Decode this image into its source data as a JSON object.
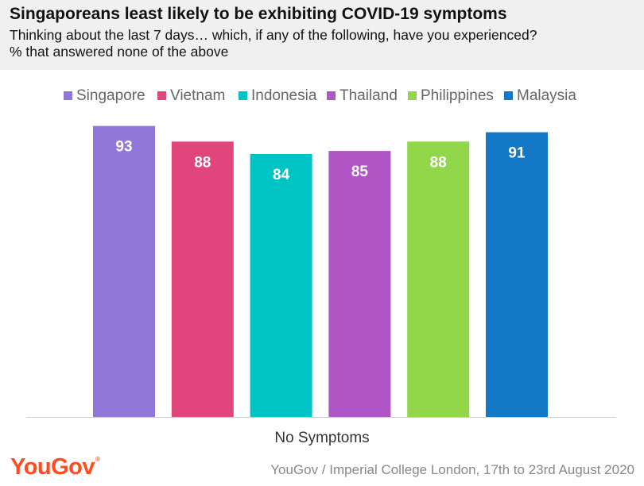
{
  "title": "Singaporeans least likely to be exhibiting COVID-19 symptoms",
  "subtitle_line1": "Thinking about the last 7 days… which, if any of the following, have you experienced?",
  "subtitle_line2": "% that answered none of the above",
  "source": "YouGov / Imperial College London, 17th to 23rd August 2020",
  "logo_text": "YouGov",
  "chart_data": {
    "type": "bar",
    "categories": [
      "No Symptoms"
    ],
    "xlabel": "No Symptoms",
    "ylim": [
      0,
      100
    ],
    "grid": false,
    "legend_position": "top",
    "series": [
      {
        "name": "Singapore",
        "values": [
          93
        ],
        "color": "#9178d8"
      },
      {
        "name": "Vietnam",
        "values": [
          88
        ],
        "color": "#e0457b"
      },
      {
        "name": "Indonesia",
        "values": [
          84
        ],
        "color": "#00c4c4"
      },
      {
        "name": "Thailand",
        "values": [
          85
        ],
        "color": "#b055c6"
      },
      {
        "name": "Philippines",
        "values": [
          88
        ],
        "color": "#92d64a"
      },
      {
        "name": "Malaysia",
        "values": [
          91
        ],
        "color": "#1378c6"
      }
    ]
  }
}
